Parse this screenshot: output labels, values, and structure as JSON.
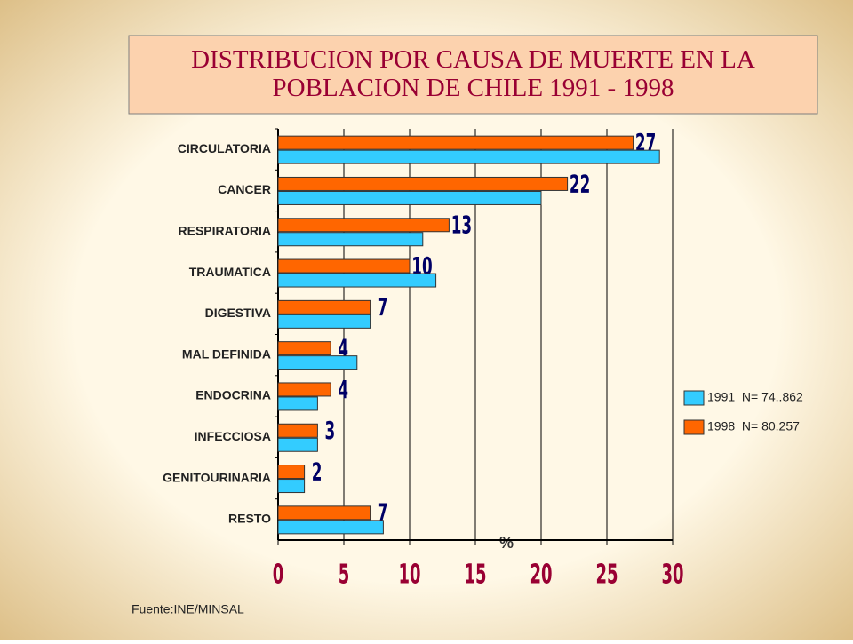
{
  "chart_data": {
    "type": "hbar",
    "title": "DISTRIBUCION POR CAUSA DE MUERTE EN LA POBLACION DE CHILE  1991 - 1998",
    "x_label": "%",
    "source": "Fuente:INE/MINSAL",
    "categories": [
      "CIRCULATORIA",
      "CANCER",
      "RESPIRATORIA",
      "TRAUMATICA",
      "DIGESTIVA",
      "MAL DEFINIDA",
      "ENDOCRINA",
      "INFECCIOSA",
      "GENITOURINARIA",
      "RESTO"
    ],
    "series": [
      {
        "name": "1991  N= 74..862",
        "color": "#33ccff",
        "values": [
          29,
          20,
          11,
          12,
          7,
          6,
          3,
          3,
          2,
          8
        ]
      },
      {
        "name": "1998  N= 80.257",
        "color": "#ff6600",
        "values": [
          27,
          22,
          13,
          10,
          7,
          4,
          4,
          3,
          2,
          7
        ]
      }
    ],
    "xlim": [
      0,
      30
    ],
    "xticks": [
      0,
      5,
      10,
      15,
      20,
      25,
      30
    ],
    "grid": true,
    "legend": "right"
  }
}
